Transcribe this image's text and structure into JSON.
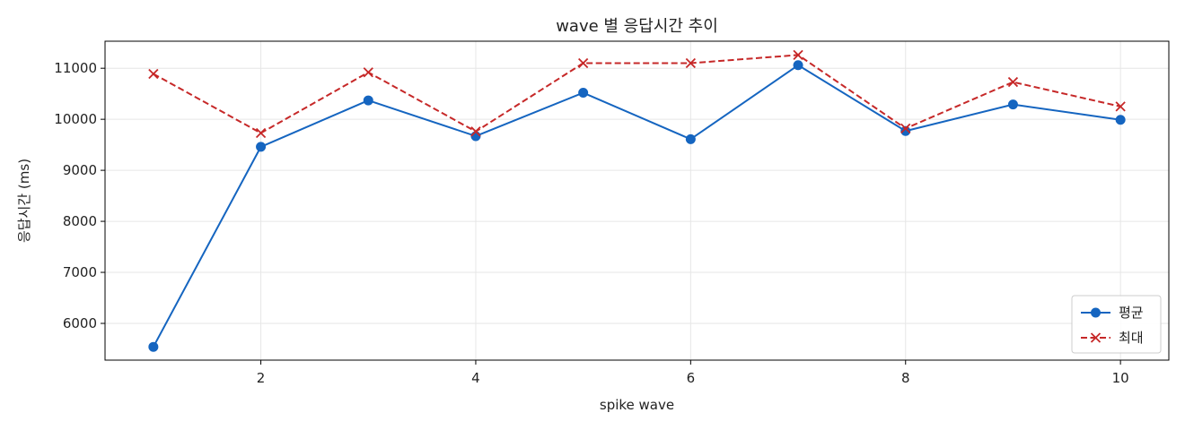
{
  "chart_data": {
    "type": "line",
    "title": "wave 별 응답시간 추이",
    "xlabel": "spike wave",
    "ylabel": "응답시간 (ms)",
    "x": [
      1,
      2,
      3,
      4,
      5,
      6,
      7,
      8,
      9,
      10
    ],
    "xlim": [
      0.55,
      10.45
    ],
    "ylim": [
      5280,
      11530
    ],
    "x_ticks": [
      2,
      4,
      6,
      8,
      10
    ],
    "y_ticks": [
      6000,
      7000,
      8000,
      9000,
      10000,
      11000
    ],
    "grid": true,
    "legend_position": "bottom-right",
    "series": [
      {
        "name": "평균",
        "color": "#1565c0",
        "line_style": "solid",
        "marker": "circle",
        "values": [
          5540,
          9460,
          10370,
          9670,
          10520,
          9610,
          11060,
          9770,
          10290,
          9990
        ]
      },
      {
        "name": "최대",
        "color": "#c62828",
        "line_style": "dashed",
        "marker": "x",
        "values": [
          10890,
          9730,
          10920,
          9760,
          11100,
          11100,
          11260,
          9820,
          10730,
          10250
        ]
      }
    ]
  }
}
